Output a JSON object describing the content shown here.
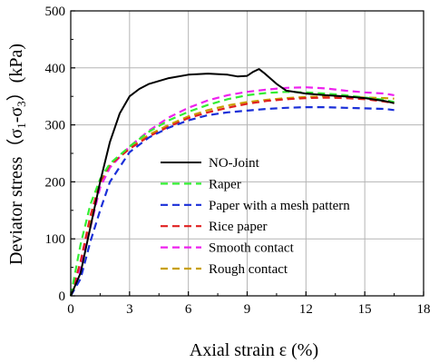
{
  "chart_data": {
    "type": "line",
    "xlabel": "Axial strain ε (%)",
    "ylabel": "Deviator stress（σ1-σ3）(kPa)",
    "ylabel_parts": {
      "main": "Deviator stress（σ",
      "sub1": "1",
      "dash": "-σ",
      "sub3": "3",
      "end": "）(kPa)"
    },
    "xlim": [
      0,
      18
    ],
    "ylim": [
      0,
      500
    ],
    "xticks": [
      0,
      3,
      6,
      9,
      12,
      15,
      18
    ],
    "yticks": [
      0,
      100,
      200,
      300,
      400,
      500
    ],
    "grid": true,
    "legend_position": "center-right",
    "series": [
      {
        "name": "NO-Joint",
        "color": "#000000",
        "dash": "solid",
        "x": [
          0,
          0.5,
          1.0,
          1.5,
          2.0,
          2.5,
          3.0,
          3.5,
          4,
          5,
          6,
          7,
          8,
          8.5,
          9.0,
          9.3,
          9.6,
          9.9,
          10.5,
          11,
          12,
          13,
          14,
          15,
          16,
          16.5
        ],
        "y": [
          0,
          40,
          120,
          200,
          270,
          320,
          350,
          363,
          372,
          382,
          388,
          390,
          388,
          385,
          386,
          393,
          398,
          390,
          372,
          360,
          355,
          352,
          350,
          347,
          342,
          338
        ]
      },
      {
        "name": "Raper",
        "color": "#33ee33",
        "dash": "dashed",
        "x": [
          0,
          0.5,
          1.0,
          1.5,
          2.0,
          3,
          4,
          5,
          6,
          7,
          8,
          9,
          10,
          11,
          12,
          13,
          14,
          15,
          16,
          16.5
        ],
        "y": [
          0,
          90,
          160,
          205,
          232,
          262,
          288,
          308,
          323,
          335,
          345,
          352,
          356,
          358,
          357,
          355,
          352,
          348,
          344,
          340
        ]
      },
      {
        "name": "Paper with a mesh pattern",
        "color": "#1a2fd8",
        "dash": "dashed",
        "x": [
          0,
          0.5,
          1.0,
          1.5,
          2.0,
          3,
          4,
          5,
          6,
          7,
          8,
          9,
          10,
          11,
          12,
          13,
          14,
          15,
          16,
          16.5
        ],
        "y": [
          0,
          30,
          95,
          150,
          200,
          252,
          278,
          295,
          308,
          317,
          322,
          325,
          328,
          330,
          331,
          331,
          330,
          329,
          328,
          326
        ]
      },
      {
        "name": "Rice paper",
        "color": "#e02020",
        "dash": "dashed",
        "x": [
          0,
          0.5,
          1.0,
          1.5,
          2.0,
          3,
          4,
          5,
          6,
          7,
          8,
          9,
          10,
          11,
          12,
          13,
          14,
          15,
          16,
          16.5
        ],
        "y": [
          0,
          60,
          140,
          200,
          230,
          258,
          280,
          297,
          312,
          322,
          330,
          337,
          342,
          345,
          347,
          348,
          347,
          345,
          341,
          338
        ]
      },
      {
        "name": "Smooth contact",
        "color": "#ee22ee",
        "dash": "dashed",
        "x": [
          0,
          0.5,
          1.0,
          1.5,
          2.0,
          3,
          4,
          5,
          6,
          7,
          8,
          9,
          10,
          11,
          12,
          13,
          14,
          15,
          16,
          16.5
        ],
        "y": [
          0,
          50,
          120,
          190,
          225,
          262,
          290,
          313,
          330,
          343,
          352,
          358,
          362,
          365,
          366,
          364,
          360,
          357,
          355,
          352
        ]
      },
      {
        "name": "Rough contact",
        "color": "#c8a000",
        "dash": "dashed",
        "x": [
          0,
          0.5,
          1.0,
          1.5,
          2.0,
          3,
          4,
          5,
          6,
          7,
          8,
          9,
          10,
          11,
          12,
          13,
          14,
          15,
          16,
          16.5
        ],
        "y": [
          0,
          55,
          130,
          195,
          228,
          260,
          283,
          300,
          315,
          326,
          334,
          340,
          344,
          347,
          349,
          350,
          349,
          348,
          347,
          346
        ]
      }
    ]
  }
}
